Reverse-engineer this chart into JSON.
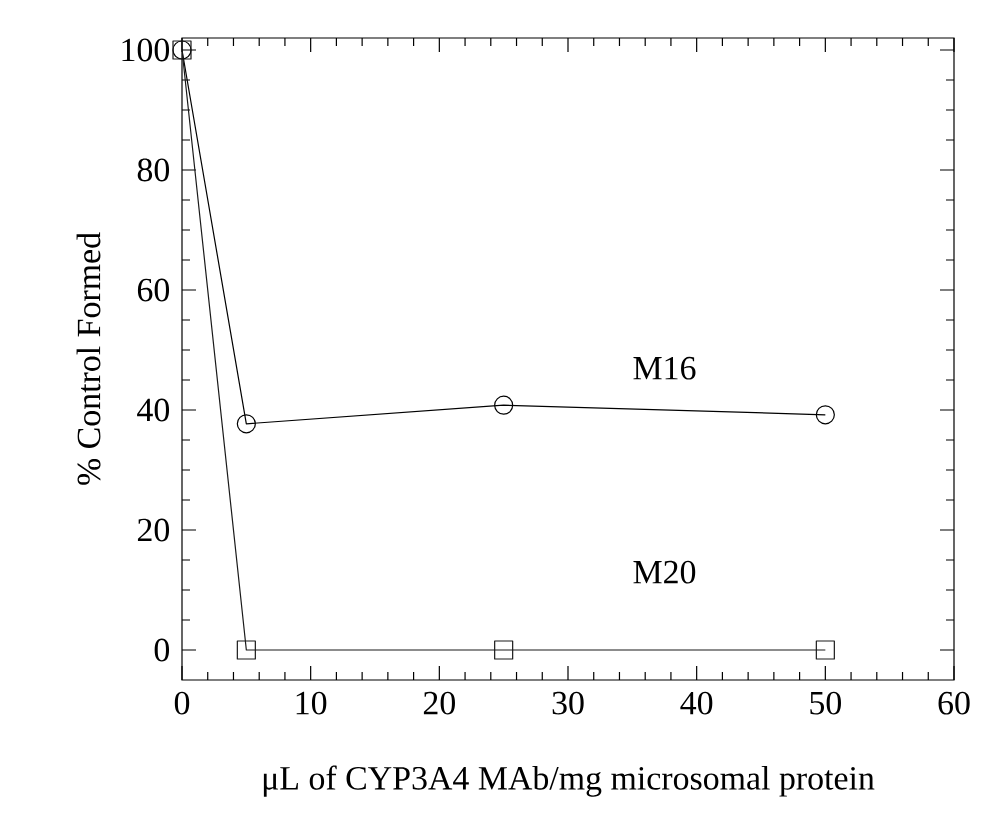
{
  "chart_data": {
    "type": "line",
    "xlabel": "μL of CYP3A4  MAb/mg microsomal protein",
    "ylabel": "% Control Formed",
    "x": [
      0,
      5,
      25,
      50
    ],
    "series": [
      {
        "name": "M16",
        "color": "#000000",
        "marker": "circle",
        "values": [
          100,
          37.7,
          40.8,
          39.2
        ]
      },
      {
        "name": "M20",
        "color": "#1a1a1a",
        "marker": "square",
        "values": [
          100,
          0,
          0,
          0
        ]
      }
    ],
    "xlim": [
      0,
      60
    ],
    "xticks": [
      0,
      10,
      20,
      30,
      40,
      50,
      60
    ],
    "ylim": [
      -5,
      102
    ],
    "yticks": [
      0,
      20,
      40,
      60,
      80,
      100
    ],
    "line_style": "solid",
    "grid": false
  }
}
